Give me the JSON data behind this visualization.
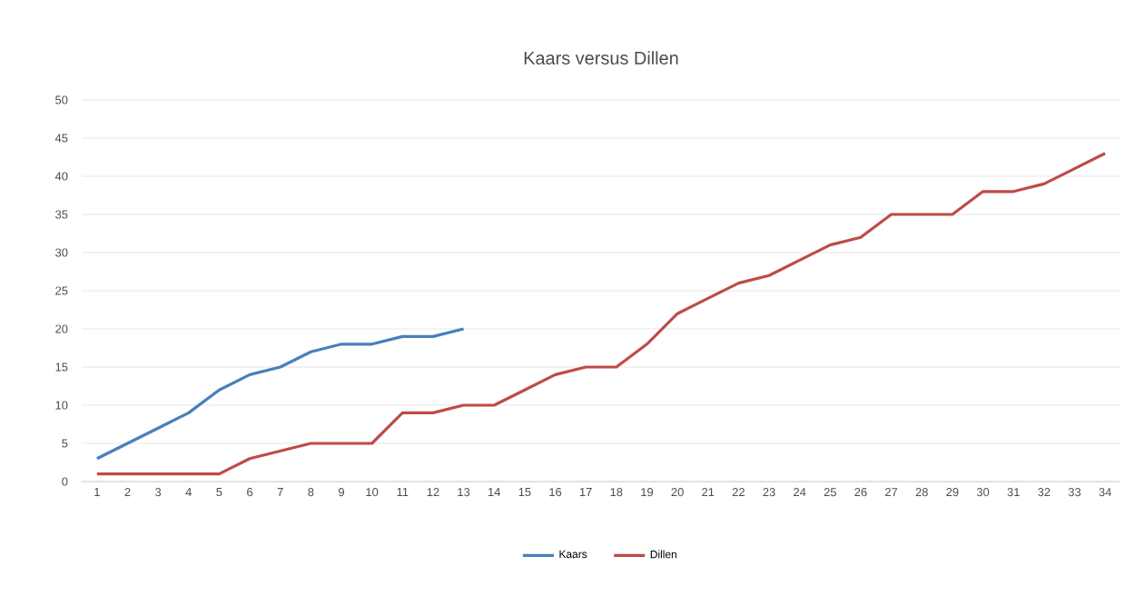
{
  "chart_data": {
    "type": "line",
    "title": "Kaars versus Dillen",
    "categories": [
      "1",
      "2",
      "3",
      "4",
      "5",
      "6",
      "7",
      "8",
      "9",
      "10",
      "11",
      "12",
      "13",
      "14",
      "15",
      "16",
      "17",
      "18",
      "19",
      "20",
      "21",
      "22",
      "23",
      "24",
      "25",
      "26",
      "27",
      "28",
      "29",
      "30",
      "31",
      "32",
      "33",
      "34"
    ],
    "series": [
      {
        "name": "Kaars",
        "color": "#4a7ebb",
        "values": [
          3,
          5,
          7,
          9,
          12,
          14,
          15,
          17,
          18,
          18,
          19,
          19,
          20,
          null,
          null,
          null,
          null,
          null,
          null,
          null,
          null,
          null,
          null,
          null,
          null,
          null,
          null,
          null,
          null,
          null,
          null,
          null,
          null,
          null
        ]
      },
      {
        "name": "Dillen",
        "color": "#be4b48",
        "values": [
          1,
          1,
          1,
          1,
          1,
          3,
          4,
          5,
          5,
          5,
          9,
          9,
          10,
          10,
          12,
          14,
          15,
          15,
          18,
          22,
          24,
          26,
          27,
          29,
          31,
          32,
          35,
          35,
          35,
          38,
          38,
          39,
          41,
          43
        ]
      }
    ],
    "ylim": [
      0,
      50
    ],
    "yticks": [
      0,
      5,
      10,
      15,
      20,
      25,
      30,
      35,
      40,
      45,
      50
    ],
    "grid": "y",
    "legend": "bottom",
    "marker": "none",
    "line_style": "solid"
  }
}
